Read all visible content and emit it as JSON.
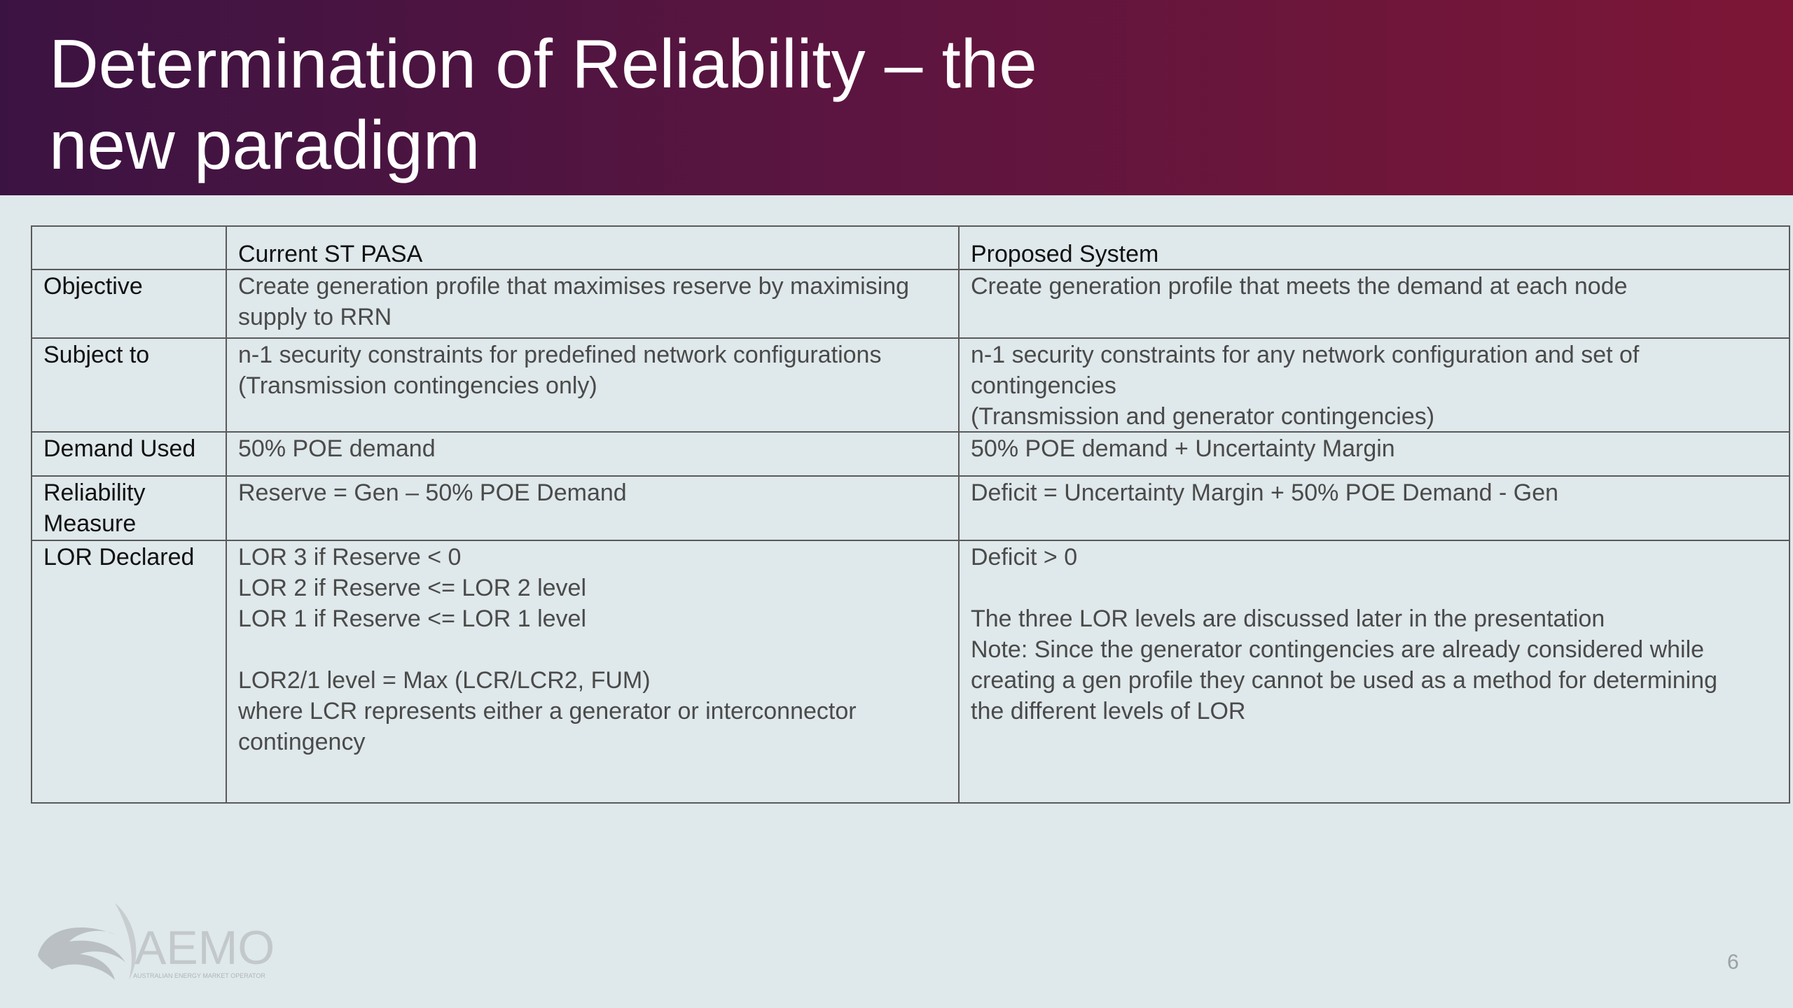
{
  "header": {
    "title_lines": [
      "Determination of Reliability – the",
      "new paradigm"
    ]
  },
  "table": {
    "columns": [
      "Current ST PASA",
      "Proposed System"
    ],
    "rows": [
      {
        "label": [
          "Objective"
        ],
        "current": [
          [
            "Create generation profile that maximises reserve by maximising",
            "supply to RRN"
          ]
        ],
        "proposed": [
          [
            "Create generation profile that meets the demand at each node"
          ]
        ]
      },
      {
        "label": [
          "Subject to"
        ],
        "current": [
          [
            "n-1 security constraints for predefined network configurations",
            "(Transmission contingencies only)"
          ]
        ],
        "proposed": [
          [
            "n-1 security constraints for any network configuration and set of",
            "contingencies",
            "(Transmission and generator contingencies)"
          ]
        ]
      },
      {
        "label": [
          "Demand Used"
        ],
        "current": [
          [
            "50% POE demand"
          ]
        ],
        "proposed": [
          [
            "50% POE demand + Uncertainty Margin"
          ]
        ]
      },
      {
        "label": [
          "Reliability",
          "Measure"
        ],
        "current": [
          [
            "Reserve = Gen – 50% POE Demand"
          ]
        ],
        "proposed": [
          [
            "Deficit =  Uncertainty Margin + 50% POE Demand - Gen"
          ]
        ]
      },
      {
        "label": [
          "LOR Declared"
        ],
        "current": [
          [
            "LOR 3 if Reserve < 0",
            "LOR 2 if Reserve <= LOR 2 level",
            "LOR 1 if Reserve <= LOR 1 level"
          ],
          [
            "LOR2/1 level = Max (LCR/LCR2, FUM)",
            "where LCR represents either a generator or interconnector",
            "contingency"
          ]
        ],
        "proposed": [
          [
            "Deficit > 0"
          ],
          [
            "The three LOR levels are discussed later in the presentation",
            "Note: Since the generator contingencies are already considered while",
            "creating a gen profile they cannot be used as a method for determining",
            "the different levels of LOR"
          ]
        ]
      }
    ]
  },
  "footer": {
    "logo": "AEMO",
    "logo_subtitle": "AUSTRALIAN ENERGY MARKET OPERATOR",
    "page_number": "6"
  }
}
